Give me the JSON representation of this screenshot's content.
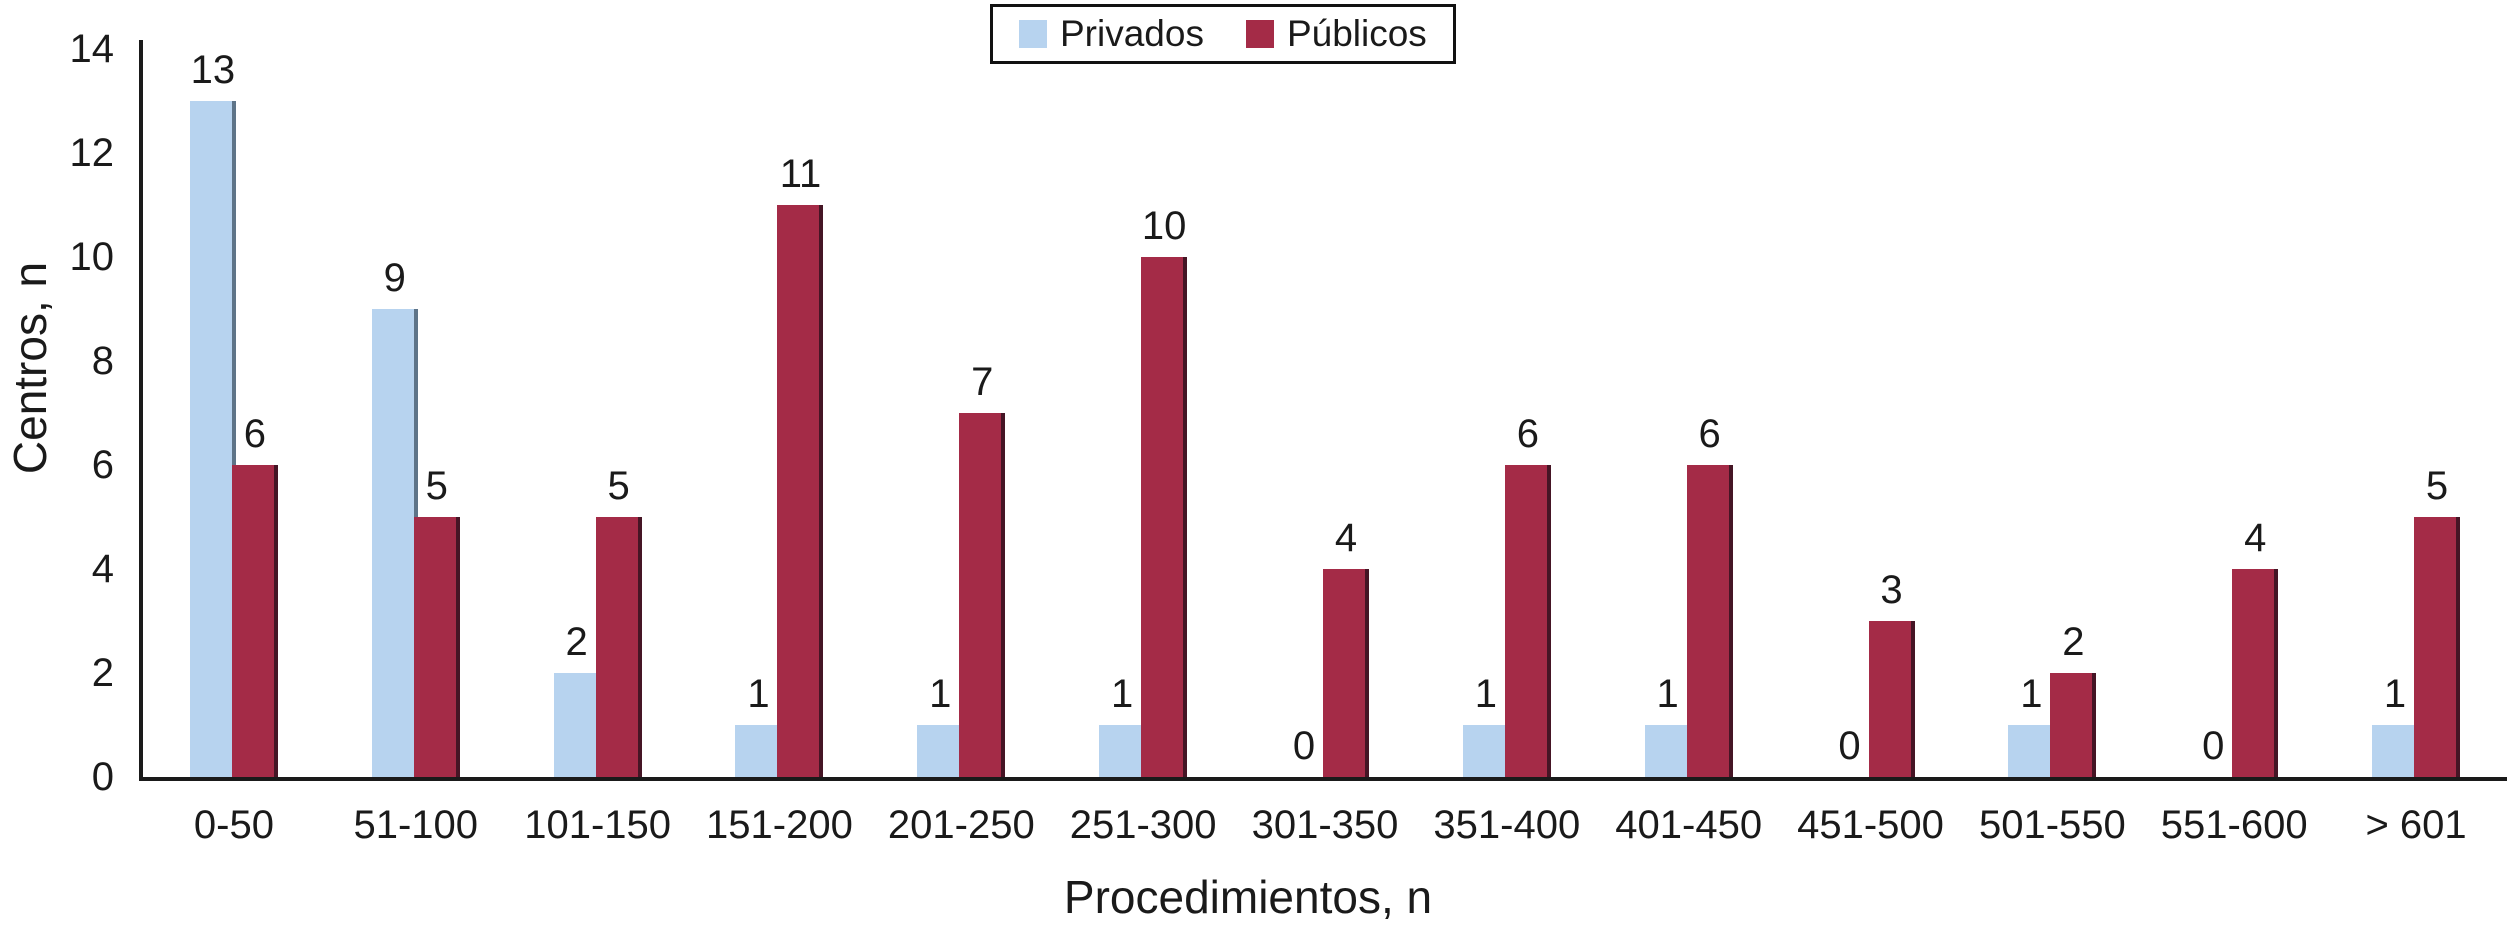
{
  "chart_data": {
    "type": "bar",
    "title": "",
    "categories": [
      "0-50",
      "51-100",
      "101-150",
      "151-200",
      "201-250",
      "251-300",
      "301-350",
      "351-400",
      "401-450",
      "451-500",
      "501-550",
      "551-600",
      "> 601"
    ],
    "series": [
      {
        "name": "Privados",
        "color": "#b7d3ef",
        "edge_color": "#5e7488",
        "values": [
          13,
          9,
          2,
          1,
          1,
          1,
          0,
          1,
          1,
          0,
          1,
          0,
          1
        ]
      },
      {
        "name": "Públicos",
        "color": "#a42b47",
        "edge_color": "#451525",
        "values": [
          6,
          5,
          5,
          11,
          7,
          10,
          4,
          6,
          6,
          3,
          2,
          4,
          5
        ]
      }
    ],
    "xlabel": "Procedimientos, n",
    "ylabel": "Centros, n",
    "ylim": [
      0,
      14
    ],
    "yticks": [
      0,
      2,
      4,
      6,
      8,
      10,
      12,
      14
    ],
    "grid": false,
    "legend_position": "top-center",
    "value_labels": true,
    "axis_color": "#1a1a1a",
    "text_color": "#1a1a1a",
    "background_color": "#ffffff"
  }
}
